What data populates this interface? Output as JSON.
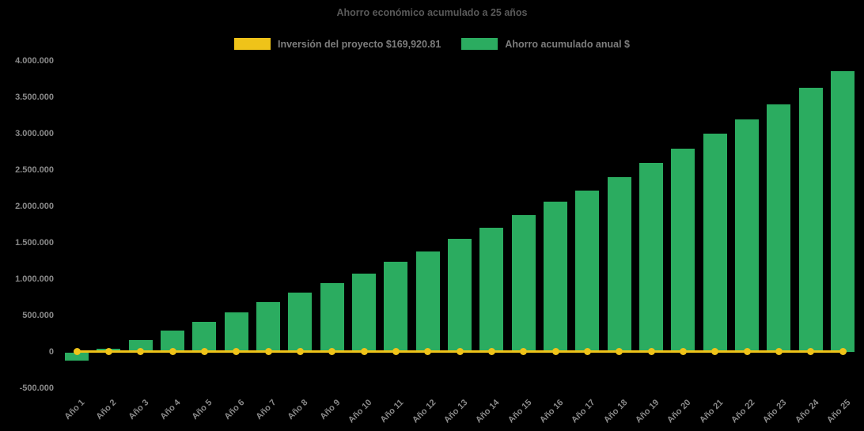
{
  "chart_data": {
    "type": "bar",
    "title": "Ahorro económico acumulado a 25 años",
    "background_color": "#000000",
    "title_color": "#595959",
    "axis_label_color": "#8a8a8a",
    "legend_text_color": "#7d7d7d",
    "grid": false,
    "legend_position": "top-center",
    "legend": [
      {
        "label": "Inversión del proyecto $169,920.81",
        "color": "#efc319",
        "series_type": "line"
      },
      {
        "label": "Ahorro acumulado anual $",
        "color": "#2bac60",
        "series_type": "bar"
      }
    ],
    "categories": [
      "Año 1",
      "Año 2",
      "Año 3",
      "Año 4",
      "Año 5",
      "Año 6",
      "Año 7",
      "Año 8",
      "Año 9",
      "Año 10",
      "Año 11",
      "Año 12",
      "Año 13",
      "Año 14",
      "Año 15",
      "Año 16",
      "Año 17",
      "Año 18",
      "Año 19",
      "Año 20",
      "Año 21",
      "Año 22",
      "Año 23",
      "Año 24",
      "Año 25"
    ],
    "series": [
      {
        "name": "Ahorro acumulado anual $",
        "type": "bar",
        "color": "#2bac60",
        "values": [
          -110000,
          40000,
          165000,
          295000,
          410000,
          540000,
          680000,
          815000,
          950000,
          1075000,
          1240000,
          1385000,
          1555000,
          1710000,
          1880000,
          2060000,
          2220000,
          2405000,
          2600000,
          2795000,
          3000000,
          3195000,
          3405000,
          3630000,
          3855000
        ]
      },
      {
        "name": "Inversión del proyecto $169,920.81",
        "type": "line",
        "color": "#efc319",
        "amount_label": "$169,920.81",
        "plotted_value": 0,
        "marker": "circle"
      }
    ],
    "y_axis": {
      "ticks": [
        {
          "value": -500000,
          "label": "-500.000"
        },
        {
          "value": 0,
          "label": "0"
        },
        {
          "value": 500000,
          "label": "500.000"
        },
        {
          "value": 1000000,
          "label": "1.000.000"
        },
        {
          "value": 1500000,
          "label": "1.500.000"
        },
        {
          "value": 2000000,
          "label": "2.000.000"
        },
        {
          "value": 2500000,
          "label": "2.500.000"
        },
        {
          "value": 3000000,
          "label": "3.000.000"
        },
        {
          "value": 3500000,
          "label": "3.500.000"
        },
        {
          "value": 4000000,
          "label": "4.000.000"
        }
      ]
    },
    "ylim": [
      -500000,
      4000000
    ],
    "x_tick_rotation_deg": -45
  }
}
